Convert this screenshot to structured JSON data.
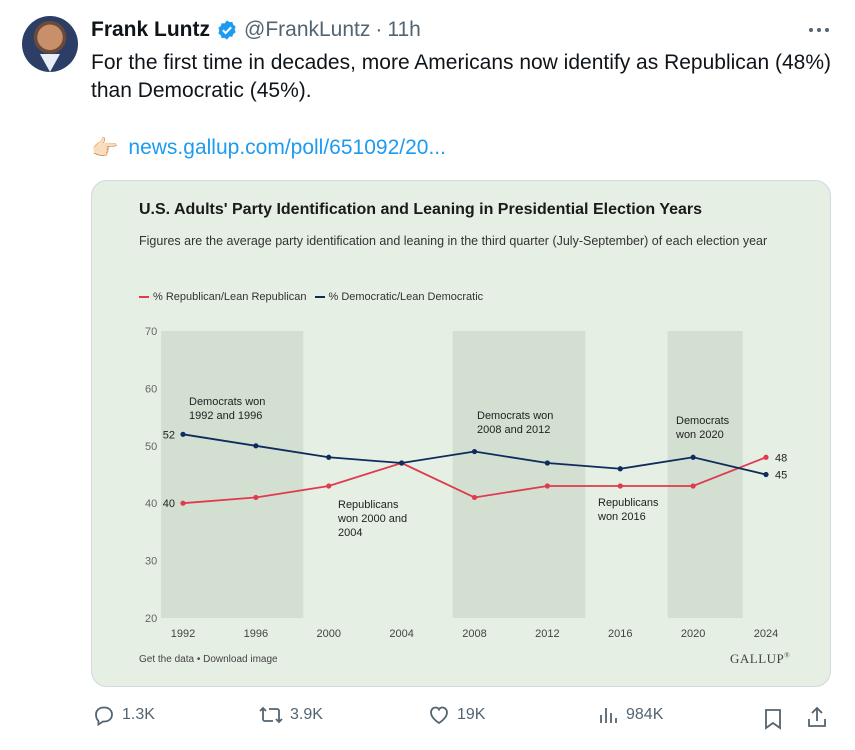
{
  "tweet": {
    "author_name": "Frank Luntz",
    "handle": "@FrankLuntz",
    "separator": "·",
    "time": "11h",
    "text": "For the first time in decades, more Americans now identify as Republican (48%) than Democratic (45%).",
    "link_emoji": "👉🏻",
    "link": "news.gallup.com/poll/651092/20..."
  },
  "actions": {
    "replies": "1.3K",
    "reposts": "3.9K",
    "likes": "19K",
    "views": "984K"
  },
  "card": {
    "footer_left": "Get the data • Download image",
    "footer_right": "GALLUP",
    "footer_right_mark": "®"
  },
  "chart_data": {
    "type": "line",
    "title": "U.S. Adults' Party Identification and Leaning in Presidential Election Years",
    "subtitle": "Figures are the average party identification and leaning in the third quarter (July-September) of each election year",
    "x": [
      "1992",
      "1996",
      "2000",
      "2004",
      "2008",
      "2012",
      "2016",
      "2020",
      "2024"
    ],
    "ylim": [
      20,
      70
    ],
    "yticks": [
      20,
      30,
      40,
      50,
      60,
      70
    ],
    "legend_position": "top-left",
    "grid": false,
    "series": [
      {
        "name": "% Republican/Lean Republican",
        "color": "#e03a4e",
        "values": [
          40,
          41,
          43,
          47,
          41,
          43,
          43,
          43,
          48
        ]
      },
      {
        "name": "% Democratic/Lean Democratic",
        "color": "#0f2a5c",
        "values": [
          52,
          50,
          48,
          47,
          49,
          47,
          46,
          48,
          45
        ]
      }
    ],
    "end_labels": {
      "start_rep": "40",
      "start_dem": "52",
      "end_rep": "48",
      "end_dem": "45"
    },
    "shaded_periods": [
      {
        "from": "1992",
        "to": "1996",
        "label_lines": [
          "Democrats won",
          "1992 and 1996"
        ]
      },
      {
        "from": "2008",
        "to": "2012",
        "label_lines": [
          "Democrats won",
          "2008 and 2012"
        ]
      },
      {
        "from": "2020",
        "to": "2020",
        "label_lines": [
          "Democrats",
          "won 2020"
        ]
      }
    ],
    "annotations": [
      {
        "lines": [
          "Republicans",
          "won 2000 and",
          "2004"
        ]
      },
      {
        "lines": [
          "Republicans",
          "won 2016"
        ]
      }
    ]
  }
}
